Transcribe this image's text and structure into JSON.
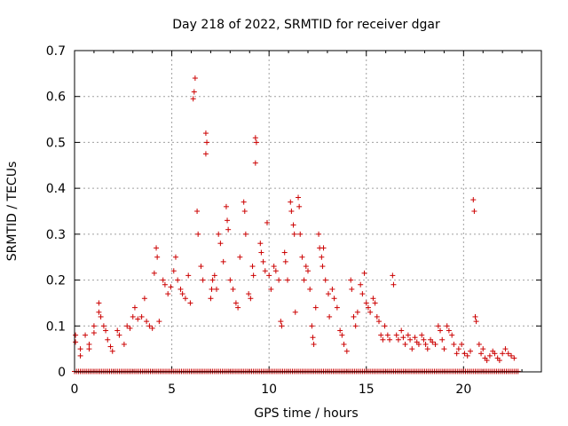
{
  "chart_data": {
    "type": "scatter",
    "title": "Day 218 of 2022, SRMTID for receiver dgar",
    "xlabel": "GPS time / hours",
    "ylabel": "SRMTID / TECUs",
    "xlim": [
      0,
      24
    ],
    "ylim": [
      0,
      0.7
    ],
    "xticks": [
      "0",
      "5",
      "10",
      "15",
      "20"
    ],
    "yticks": [
      "0",
      "0.1",
      "0.2",
      "0.3",
      "0.4",
      "0.5",
      "0.6",
      "0.7"
    ],
    "grid": true,
    "marker": "plus",
    "color": "#cc0000",
    "zero_line_range": [
      0,
      22.8
    ],
    "series": [
      {
        "name": "SRMTID",
        "points": [
          [
            0.05,
            0.08
          ],
          [
            0.05,
            0.065
          ],
          [
            0.3,
            0.05
          ],
          [
            0.3,
            0.035
          ],
          [
            0.55,
            0.08
          ],
          [
            0.75,
            0.06
          ],
          [
            0.75,
            0.05
          ],
          [
            1.0,
            0.1
          ],
          [
            1.0,
            0.085
          ],
          [
            1.25,
            0.15
          ],
          [
            1.25,
            0.13
          ],
          [
            1.35,
            0.12
          ],
          [
            1.5,
            0.1
          ],
          [
            1.6,
            0.09
          ],
          [
            1.7,
            0.07
          ],
          [
            1.85,
            0.055
          ],
          [
            1.95,
            0.045
          ],
          [
            2.2,
            0.09
          ],
          [
            2.3,
            0.08
          ],
          [
            2.55,
            0.06
          ],
          [
            2.7,
            0.1
          ],
          [
            2.85,
            0.095
          ],
          [
            3.0,
            0.12
          ],
          [
            3.1,
            0.14
          ],
          [
            3.25,
            0.115
          ],
          [
            3.45,
            0.12
          ],
          [
            3.6,
            0.16
          ],
          [
            3.7,
            0.11
          ],
          [
            3.85,
            0.1
          ],
          [
            4.0,
            0.095
          ],
          [
            4.1,
            0.215
          ],
          [
            4.2,
            0.27
          ],
          [
            4.25,
            0.25
          ],
          [
            4.35,
            0.11
          ],
          [
            4.55,
            0.2
          ],
          [
            4.65,
            0.19
          ],
          [
            4.8,
            0.17
          ],
          [
            4.95,
            0.185
          ],
          [
            5.1,
            0.22
          ],
          [
            5.2,
            0.25
          ],
          [
            5.3,
            0.2
          ],
          [
            5.45,
            0.18
          ],
          [
            5.55,
            0.17
          ],
          [
            5.7,
            0.16
          ],
          [
            5.85,
            0.21
          ],
          [
            5.95,
            0.15
          ],
          [
            6.1,
            0.595
          ],
          [
            6.15,
            0.61
          ],
          [
            6.2,
            0.64
          ],
          [
            6.3,
            0.35
          ],
          [
            6.35,
            0.3
          ],
          [
            6.5,
            0.23
          ],
          [
            6.6,
            0.2
          ],
          [
            6.75,
            0.52
          ],
          [
            6.8,
            0.5
          ],
          [
            6.75,
            0.475
          ],
          [
            7.0,
            0.16
          ],
          [
            7.05,
            0.18
          ],
          [
            7.1,
            0.2
          ],
          [
            7.2,
            0.21
          ],
          [
            7.3,
            0.18
          ],
          [
            7.4,
            0.3
          ],
          [
            7.5,
            0.28
          ],
          [
            7.65,
            0.24
          ],
          [
            7.8,
            0.36
          ],
          [
            7.85,
            0.33
          ],
          [
            7.9,
            0.31
          ],
          [
            8.0,
            0.2
          ],
          [
            8.15,
            0.18
          ],
          [
            8.3,
            0.15
          ],
          [
            8.4,
            0.14
          ],
          [
            8.5,
            0.25
          ],
          [
            8.7,
            0.37
          ],
          [
            8.75,
            0.35
          ],
          [
            8.8,
            0.3
          ],
          [
            8.95,
            0.17
          ],
          [
            9.05,
            0.16
          ],
          [
            9.15,
            0.23
          ],
          [
            9.2,
            0.21
          ],
          [
            9.3,
            0.51
          ],
          [
            9.35,
            0.5
          ],
          [
            9.3,
            0.455
          ],
          [
            9.55,
            0.28
          ],
          [
            9.6,
            0.26
          ],
          [
            9.7,
            0.24
          ],
          [
            9.8,
            0.22
          ],
          [
            9.9,
            0.325
          ],
          [
            10.0,
            0.21
          ],
          [
            10.1,
            0.18
          ],
          [
            10.25,
            0.23
          ],
          [
            10.35,
            0.22
          ],
          [
            10.5,
            0.2
          ],
          [
            10.6,
            0.11
          ],
          [
            10.65,
            0.1
          ],
          [
            10.8,
            0.26
          ],
          [
            10.85,
            0.24
          ],
          [
            10.95,
            0.2
          ],
          [
            11.1,
            0.37
          ],
          [
            11.15,
            0.35
          ],
          [
            11.25,
            0.32
          ],
          [
            11.3,
            0.3
          ],
          [
            11.35,
            0.13
          ],
          [
            11.5,
            0.38
          ],
          [
            11.55,
            0.36
          ],
          [
            11.6,
            0.3
          ],
          [
            11.7,
            0.25
          ],
          [
            11.8,
            0.2
          ],
          [
            11.9,
            0.23
          ],
          [
            12.0,
            0.22
          ],
          [
            12.1,
            0.18
          ],
          [
            12.2,
            0.1
          ],
          [
            12.25,
            0.075
          ],
          [
            12.3,
            0.06
          ],
          [
            12.4,
            0.14
          ],
          [
            12.55,
            0.3
          ],
          [
            12.6,
            0.27
          ],
          [
            12.7,
            0.25
          ],
          [
            12.75,
            0.23
          ],
          [
            12.8,
            0.27
          ],
          [
            12.9,
            0.2
          ],
          [
            13.05,
            0.17
          ],
          [
            13.1,
            0.12
          ],
          [
            13.25,
            0.18
          ],
          [
            13.35,
            0.16
          ],
          [
            13.5,
            0.14
          ],
          [
            13.65,
            0.09
          ],
          [
            13.75,
            0.08
          ],
          [
            13.85,
            0.06
          ],
          [
            14.0,
            0.045
          ],
          [
            14.2,
            0.2
          ],
          [
            14.25,
            0.18
          ],
          [
            14.35,
            0.12
          ],
          [
            14.45,
            0.1
          ],
          [
            14.55,
            0.13
          ],
          [
            14.7,
            0.19
          ],
          [
            14.8,
            0.17
          ],
          [
            14.9,
            0.215
          ],
          [
            15.0,
            0.15
          ],
          [
            15.1,
            0.14
          ],
          [
            15.2,
            0.13
          ],
          [
            15.35,
            0.16
          ],
          [
            15.45,
            0.15
          ],
          [
            15.55,
            0.12
          ],
          [
            15.65,
            0.11
          ],
          [
            15.75,
            0.08
          ],
          [
            15.85,
            0.07
          ],
          [
            15.95,
            0.1
          ],
          [
            16.1,
            0.08
          ],
          [
            16.2,
            0.07
          ],
          [
            16.35,
            0.21
          ],
          [
            16.4,
            0.19
          ],
          [
            16.55,
            0.08
          ],
          [
            16.65,
            0.07
          ],
          [
            16.8,
            0.09
          ],
          [
            16.9,
            0.075
          ],
          [
            17.0,
            0.06
          ],
          [
            17.15,
            0.08
          ],
          [
            17.25,
            0.07
          ],
          [
            17.35,
            0.05
          ],
          [
            17.5,
            0.075
          ],
          [
            17.6,
            0.065
          ],
          [
            17.7,
            0.06
          ],
          [
            17.85,
            0.08
          ],
          [
            17.95,
            0.07
          ],
          [
            18.05,
            0.06
          ],
          [
            18.15,
            0.05
          ],
          [
            18.3,
            0.07
          ],
          [
            18.4,
            0.065
          ],
          [
            18.55,
            0.06
          ],
          [
            18.7,
            0.1
          ],
          [
            18.8,
            0.09
          ],
          [
            18.9,
            0.07
          ],
          [
            19.0,
            0.05
          ],
          [
            19.15,
            0.1
          ],
          [
            19.25,
            0.09
          ],
          [
            19.4,
            0.08
          ],
          [
            19.5,
            0.06
          ],
          [
            19.65,
            0.04
          ],
          [
            19.75,
            0.05
          ],
          [
            19.9,
            0.06
          ],
          [
            20.05,
            0.04
          ],
          [
            20.2,
            0.035
          ],
          [
            20.35,
            0.045
          ],
          [
            20.5,
            0.375
          ],
          [
            20.55,
            0.35
          ],
          [
            20.6,
            0.12
          ],
          [
            20.65,
            0.11
          ],
          [
            20.8,
            0.06
          ],
          [
            20.9,
            0.04
          ],
          [
            21.0,
            0.05
          ],
          [
            21.1,
            0.03
          ],
          [
            21.2,
            0.025
          ],
          [
            21.35,
            0.035
          ],
          [
            21.5,
            0.045
          ],
          [
            21.6,
            0.04
          ],
          [
            21.75,
            0.03
          ],
          [
            21.85,
            0.025
          ],
          [
            22.0,
            0.04
          ],
          [
            22.15,
            0.05
          ],
          [
            22.3,
            0.04
          ],
          [
            22.45,
            0.035
          ],
          [
            22.6,
            0.03
          ]
        ]
      }
    ]
  }
}
